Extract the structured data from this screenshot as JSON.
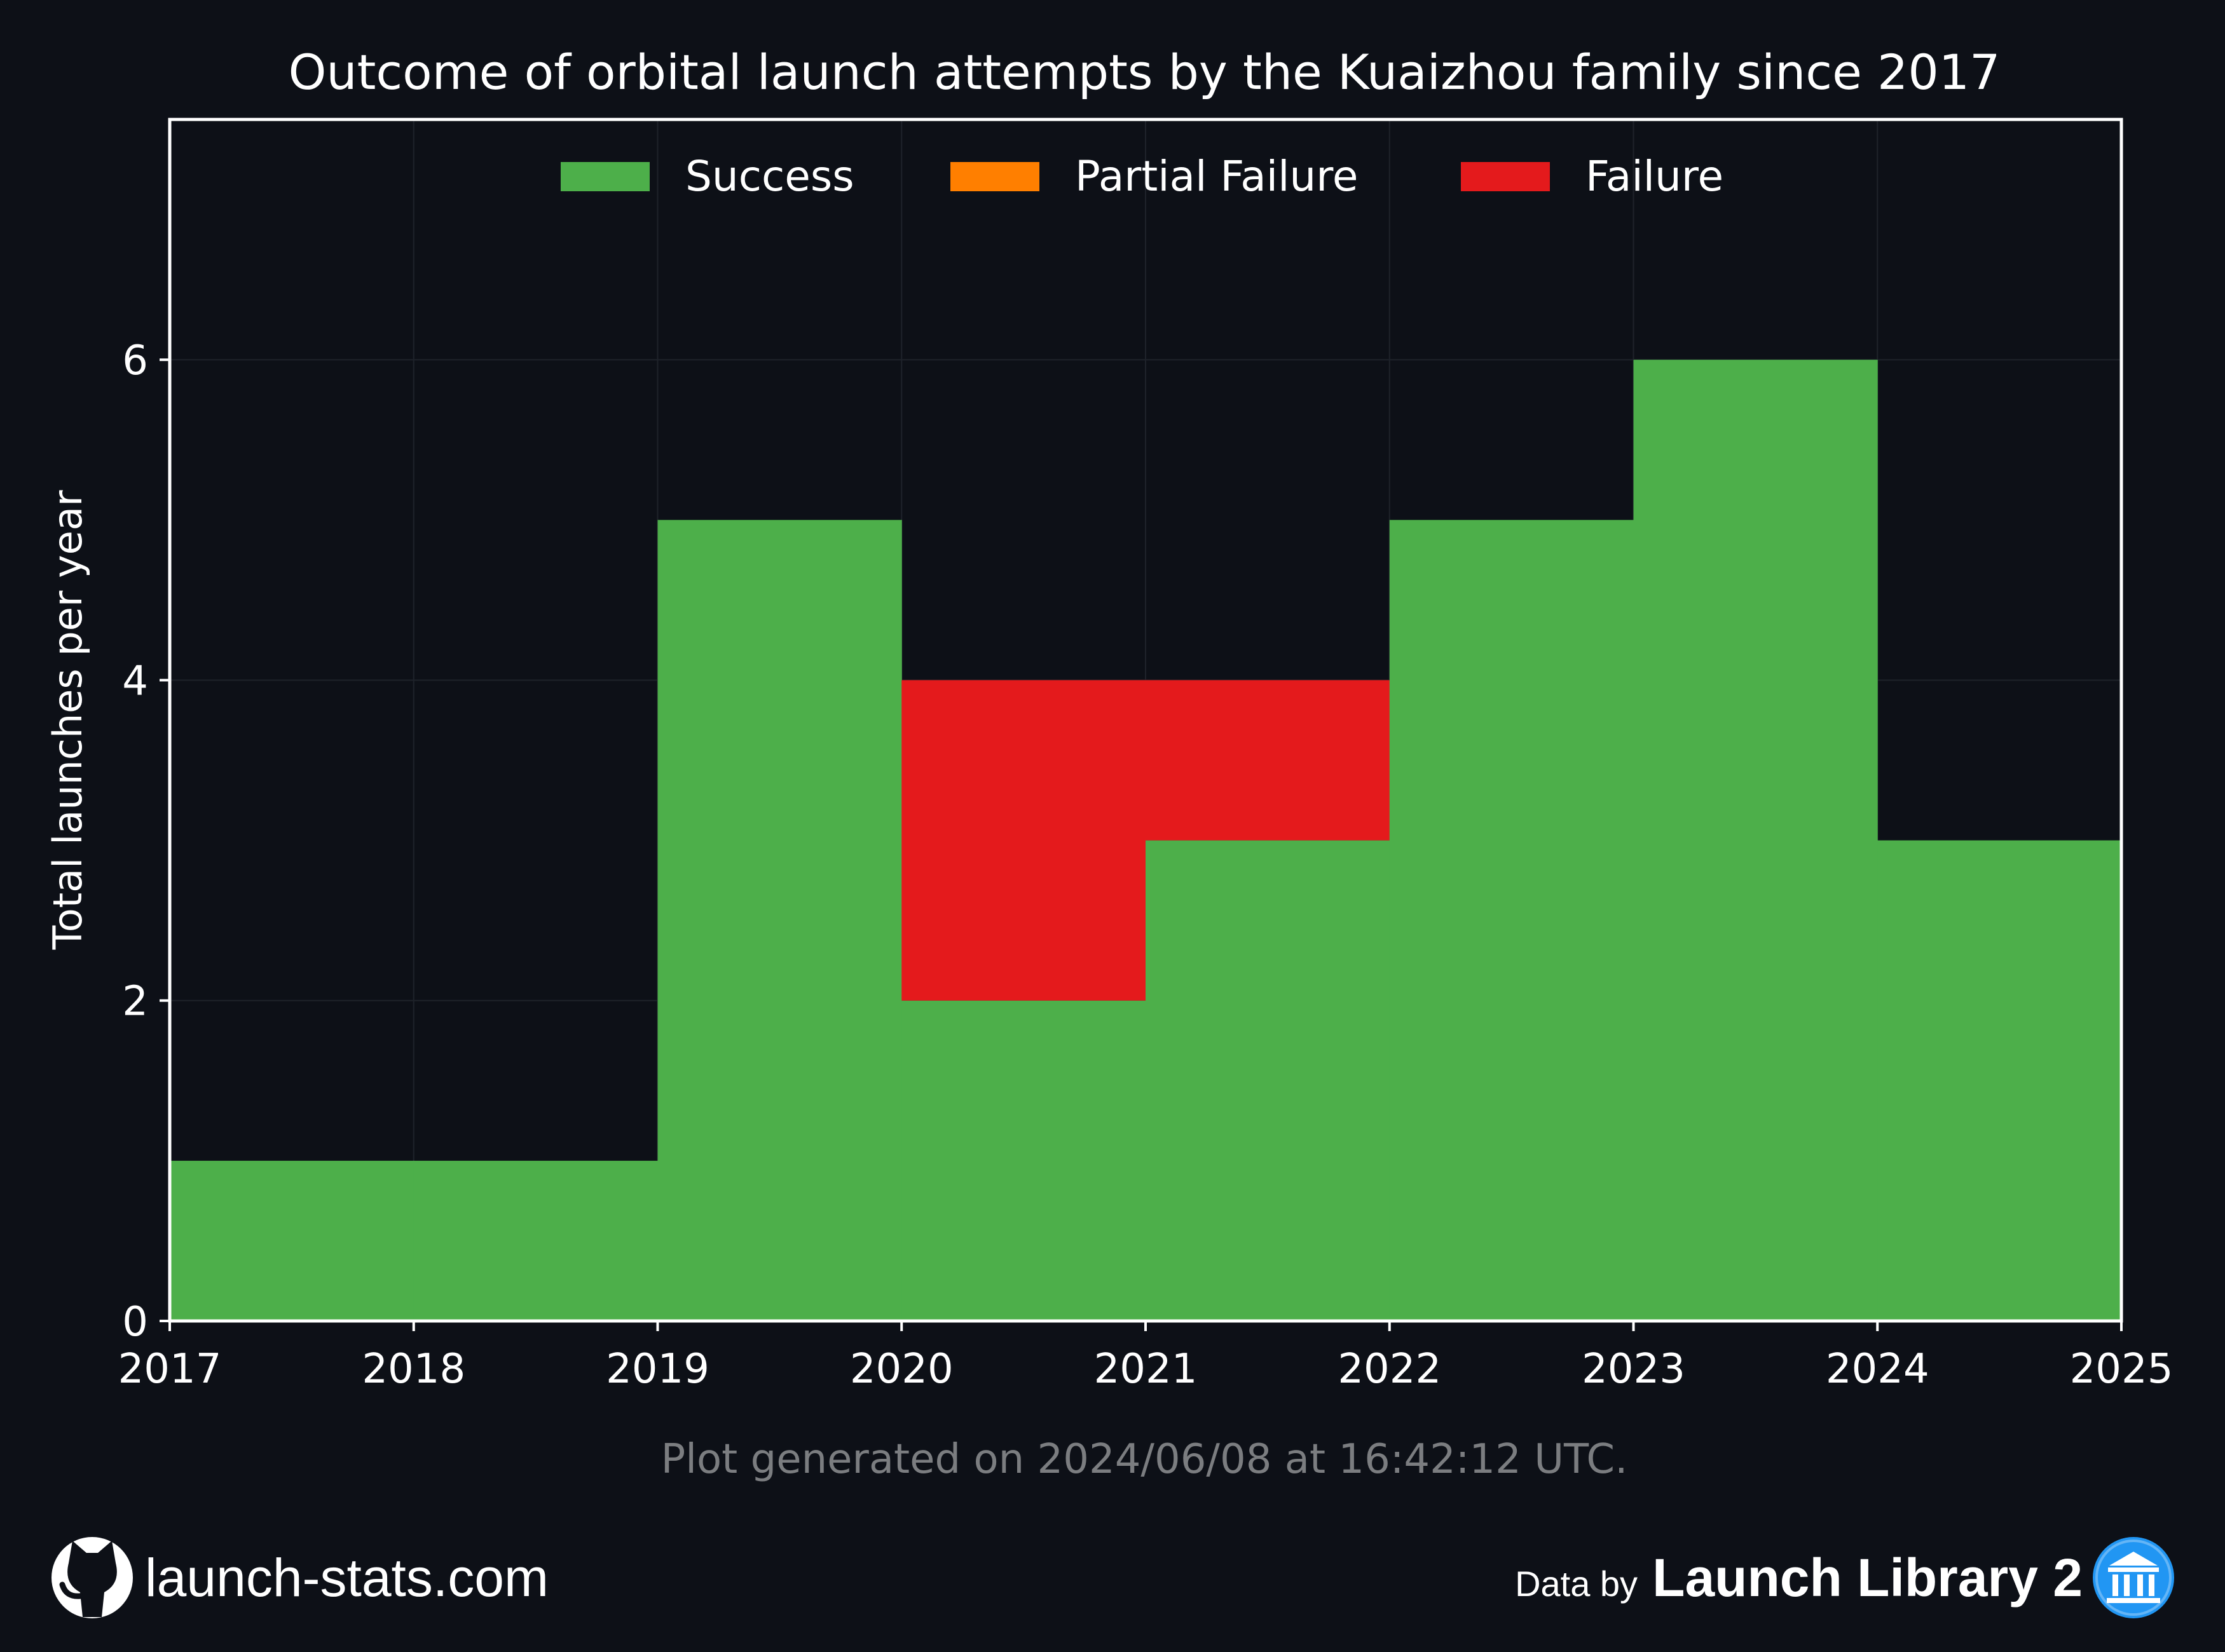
{
  "chart_data": {
    "type": "bar",
    "stacked": true,
    "step_histogram": true,
    "title": "Outcome of orbital launch attempts by the Kuaizhou family since 2017",
    "xlabel": "",
    "ylabel": "Total launches per year",
    "xlim": [
      2017,
      2025
    ],
    "ylim": [
      0,
      7.5
    ],
    "x_ticks": [
      "2017",
      "2018",
      "2019",
      "2020",
      "2021",
      "2022",
      "2023",
      "2024",
      "2025"
    ],
    "y_ticks": [
      "0",
      "2",
      "4",
      "6"
    ],
    "categories": [
      "2017",
      "2018",
      "2019",
      "2020",
      "2021",
      "2022",
      "2023",
      "2024"
    ],
    "series": [
      {
        "name": "Success",
        "color": "#4daf4a",
        "values": [
          1,
          1,
          5,
          2,
          3,
          5,
          6,
          3
        ]
      },
      {
        "name": "Partial Failure",
        "color": "#ff7f00",
        "values": [
          0,
          0,
          0,
          0,
          0,
          0,
          0,
          0
        ]
      },
      {
        "name": "Failure",
        "color": "#e41a1c",
        "values": [
          0,
          0,
          0,
          2,
          1,
          0,
          0,
          0
        ]
      }
    ],
    "grid": true,
    "legend_position": "top-center"
  },
  "footer": {
    "generated_note": "Plot generated on 2024/06/08 at 16:42:12 UTC.",
    "site_label": "launch-stats.com",
    "site_icon": "github-icon",
    "data_by_prefix": "Data by",
    "data_by_source": "Launch Library 2",
    "source_icon": "library-icon"
  },
  "colors": {
    "background": "#0d1017",
    "axes_frame": "#ffffff",
    "grid": "#1e222a",
    "note_text": "#7b7d80",
    "source_badge": "#2196f3"
  }
}
